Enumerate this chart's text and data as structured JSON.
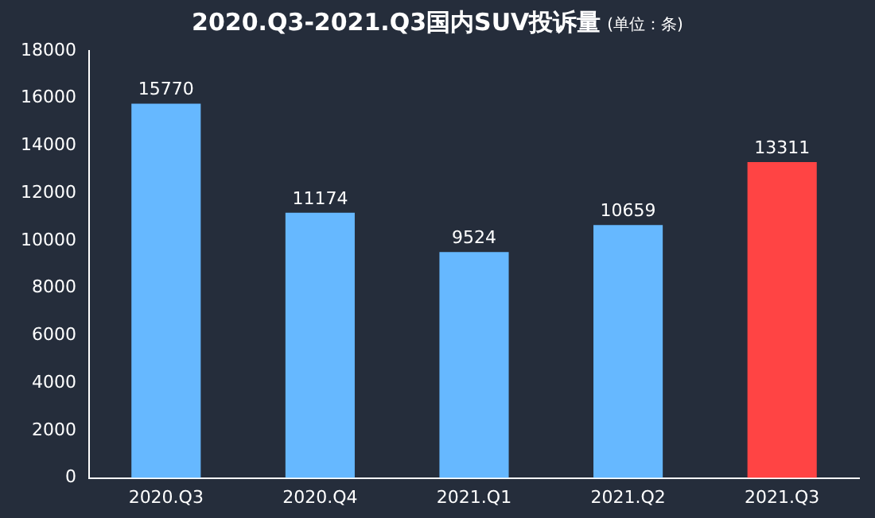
{
  "chart_data": {
    "type": "bar",
    "title": "2020.Q3-2021.Q3国内SUV投诉量",
    "subtitle": "(单位：条)",
    "categories": [
      "2020.Q3",
      "2020.Q4",
      "2021.Q1",
      "2021.Q2",
      "2021.Q3"
    ],
    "values": [
      15770,
      11174,
      9524,
      10659,
      13311
    ],
    "colors": [
      "#66b8ff",
      "#66b8ff",
      "#66b8ff",
      "#66b8ff",
      "#ff4444"
    ],
    "ylim": [
      0,
      18000
    ],
    "yticks": [
      0,
      2000,
      4000,
      6000,
      8000,
      10000,
      12000,
      14000,
      16000,
      18000
    ],
    "grid": false,
    "legend": false,
    "data_labels": true
  }
}
